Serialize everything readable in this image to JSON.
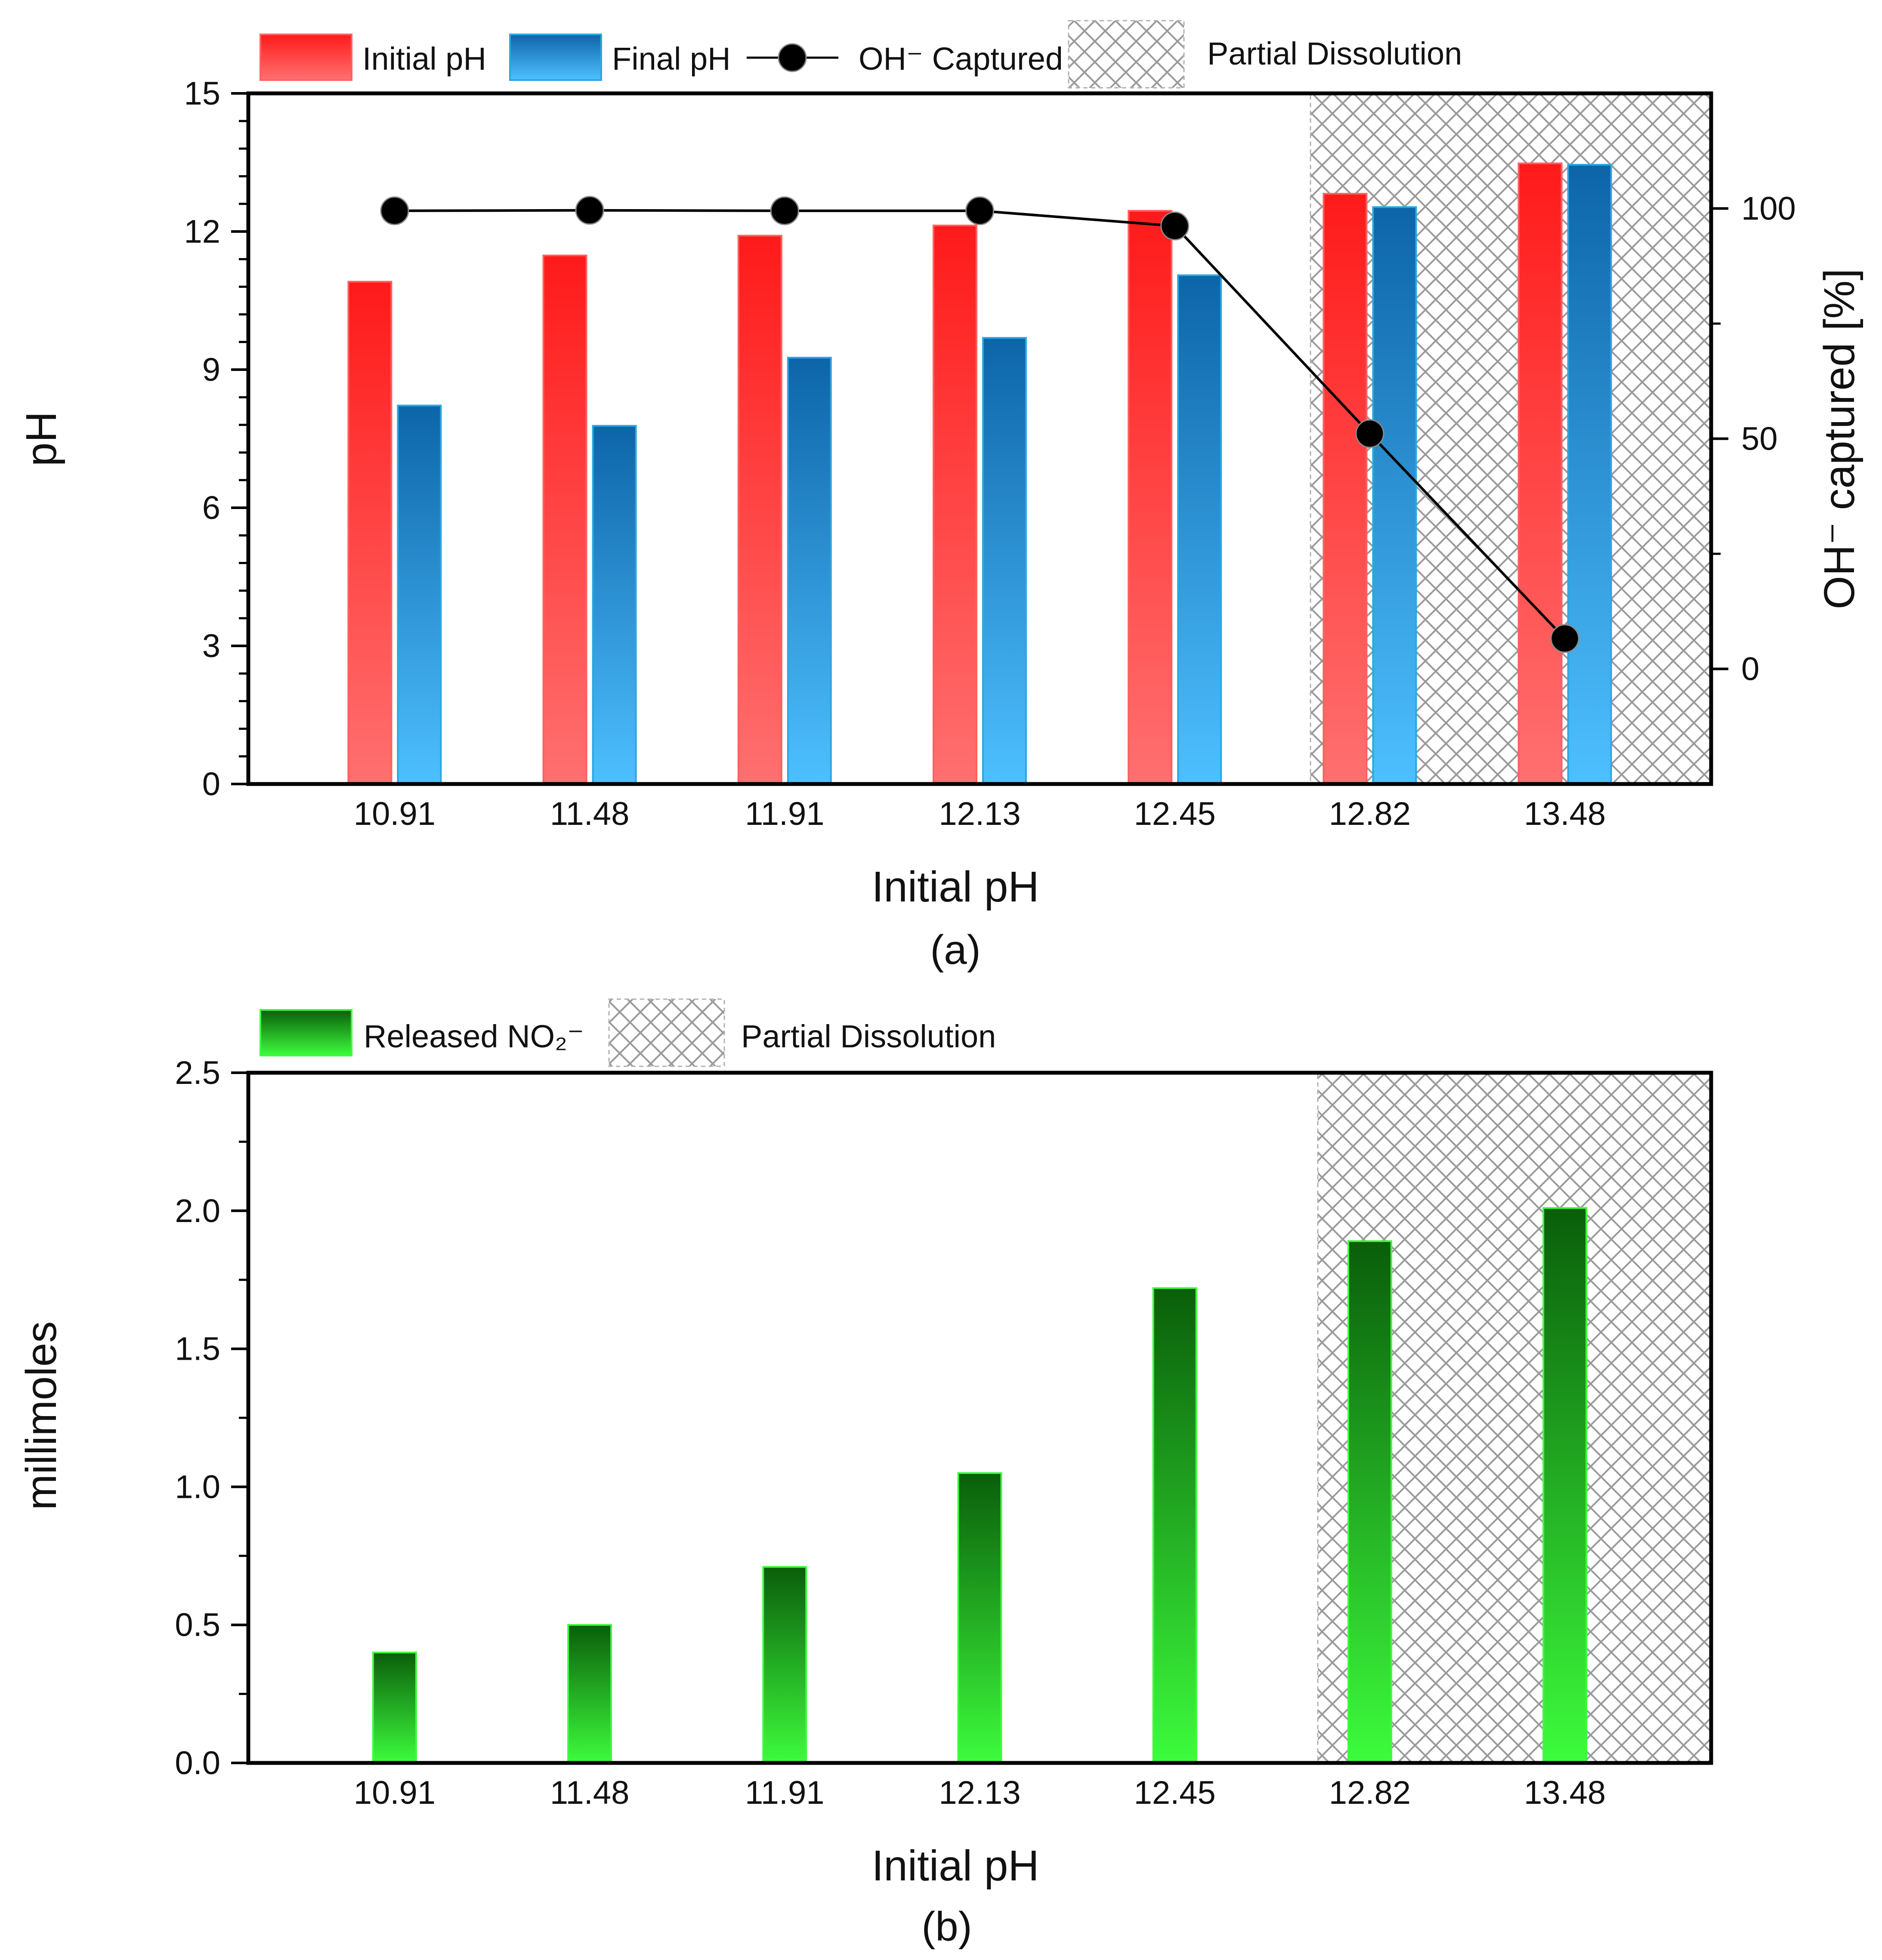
{
  "chart_data": [
    {
      "type": "bar",
      "panel_label": "(a)",
      "xlabel": "Initial pH",
      "ylabel": "pH",
      "y2label": "OH⁻ captured [%]",
      "categories": [
        "10.91",
        "11.48",
        "11.91",
        "12.13",
        "12.45",
        "12.82",
        "13.48"
      ],
      "ylim": [
        0,
        15
      ],
      "yticks": [
        "0",
        "3",
        "6",
        "9",
        "12",
        "15"
      ],
      "y2lim": [
        -25,
        125
      ],
      "y2ticks": [
        "0",
        "50",
        "100"
      ],
      "series": [
        {
          "name": "Initial pH",
          "kind": "bar",
          "axis": "left",
          "values": [
            10.91,
            11.48,
            11.91,
            12.13,
            12.45,
            12.82,
            13.48
          ],
          "color_top": "#ff1a1a",
          "color_bottom": "#ff7070"
        },
        {
          "name": "Final pH",
          "kind": "bar",
          "axis": "left",
          "values": [
            8.22,
            7.78,
            9.26,
            9.69,
            11.05,
            12.53,
            13.45
          ],
          "color_top": "#0d65a8",
          "color_bottom": "#4ec0ff"
        },
        {
          "name": "OH⁻ Captured",
          "kind": "line",
          "axis": "right",
          "values": [
            99.5,
            99.6,
            99.5,
            99.5,
            96.2,
            51.1,
            6.6
          ],
          "color": "#000000"
        }
      ],
      "shaded_region": {
        "label": "Partial Dissolution",
        "from_category": "12.82",
        "to_category": "13.48"
      },
      "legend_position": "top"
    },
    {
      "type": "bar",
      "panel_label": "(b)",
      "xlabel": "Initial pH",
      "ylabel": "millimoles",
      "categories": [
        "10.91",
        "11.48",
        "11.91",
        "12.13",
        "12.45",
        "12.82",
        "13.48"
      ],
      "ylim": [
        0,
        2.5
      ],
      "yticks": [
        "0.0",
        "0.5",
        "1.0",
        "1.5",
        "2.0",
        "2.5"
      ],
      "series": [
        {
          "name": "Released NO₂⁻",
          "kind": "bar",
          "axis": "left",
          "values": [
            0.4,
            0.5,
            0.71,
            1.05,
            1.72,
            1.89,
            2.01
          ],
          "color_top": "#0a5e0a",
          "color_bottom": "#3dfc3d"
        }
      ],
      "shaded_region": {
        "label": "Partial Dissolution",
        "from_category": "12.82",
        "to_category": "13.48"
      },
      "legend_position": "top"
    }
  ]
}
